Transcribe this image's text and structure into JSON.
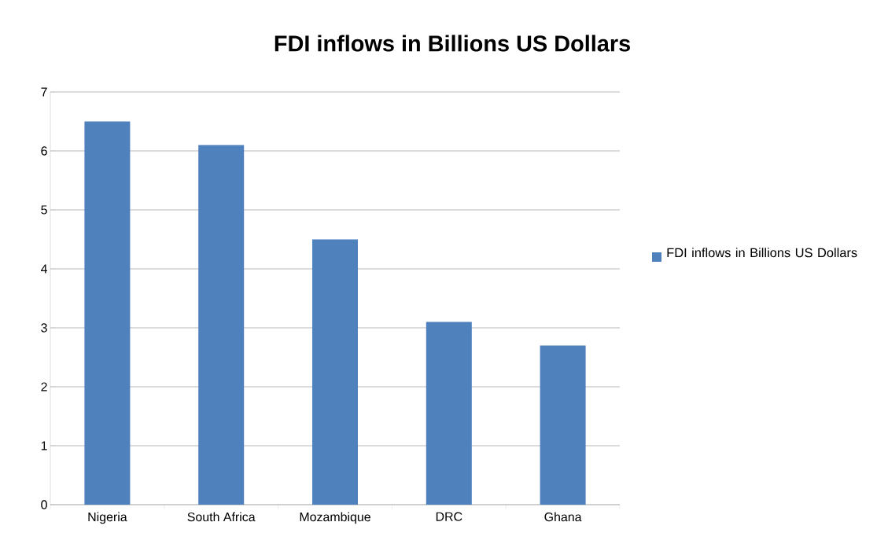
{
  "chart_data": {
    "type": "bar",
    "title": "FDI inflows in Billions US Dollars",
    "categories": [
      "Nigeria",
      "South Africa",
      "Mozambique",
      "DRC",
      "Ghana"
    ],
    "series": [
      {
        "name": "FDI inflows in Billions US Dollars",
        "color": "#4f81bd",
        "values": [
          6.5,
          6.1,
          4.5,
          3.1,
          2.7
        ]
      }
    ],
    "ylim": [
      0,
      7
    ],
    "yticks": [
      0,
      1,
      2,
      3,
      4,
      5,
      6,
      7
    ],
    "grid": "y",
    "legend": "right"
  }
}
